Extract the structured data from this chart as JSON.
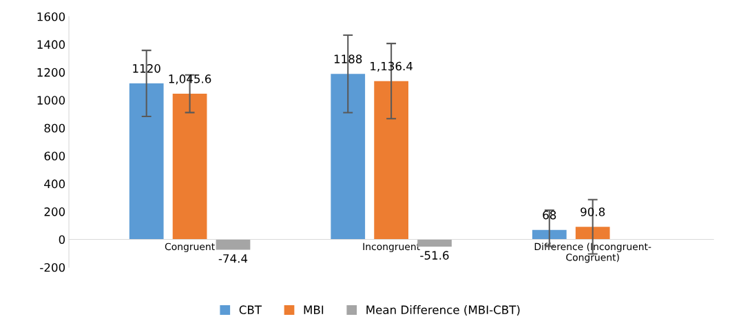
{
  "chart_data": {
    "type": "bar",
    "categories": [
      "Congruent",
      "Incongruent",
      "Difference (Incongruent-\nCongruent)"
    ],
    "series": [
      {
        "name": "CBT",
        "color": "#5b9bd5",
        "values": [
          1120,
          1188,
          68
        ],
        "value_labels": [
          "1120",
          "1188",
          "68"
        ],
        "errors": [
          237,
          278,
          [
            -50,
            210
          ]
        ]
      },
      {
        "name": "MBI",
        "color": "#ed7d31",
        "values": [
          1045.6,
          1136.4,
          90.8
        ],
        "value_labels": [
          "1,045.6",
          "1,136.4",
          "90.8"
        ],
        "errors": [
          135,
          270,
          195
        ]
      },
      {
        "name": "Mean Difference (MBI-CBT)",
        "color": "#a5a5a5",
        "values": [
          -74.4,
          -51.6,
          null
        ],
        "value_labels": [
          "-74.4",
          "-51.6",
          null
        ]
      }
    ],
    "ylim": [
      -200,
      1600
    ],
    "yticks": [
      -200,
      0,
      200,
      400,
      600,
      800,
      1000,
      1200,
      1400,
      1600
    ],
    "grid": false,
    "legend": "bottom"
  }
}
